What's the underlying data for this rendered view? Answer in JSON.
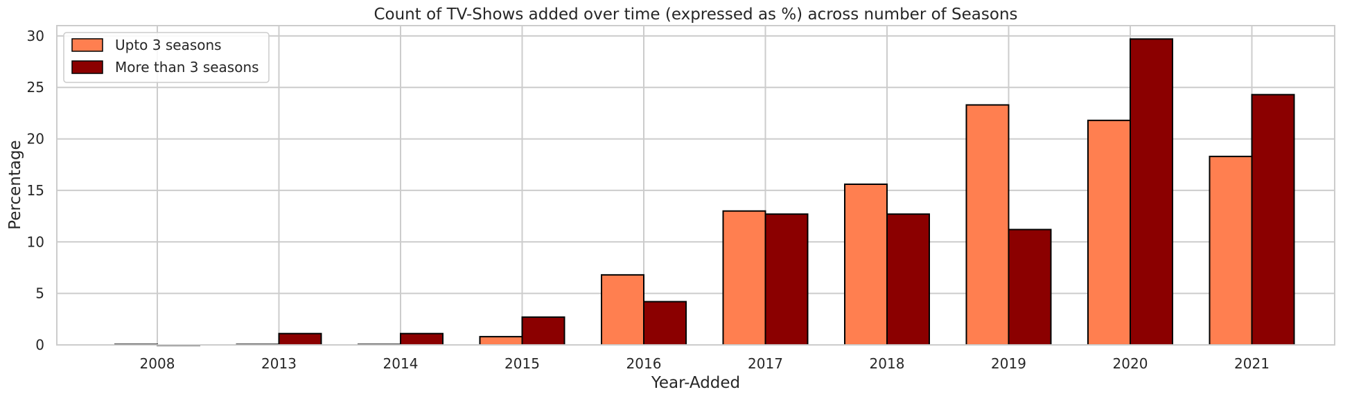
{
  "chart_data": {
    "type": "bar",
    "title": "Count of TV-Shows added over time (expressed as %) across number of Seasons",
    "xlabel": "Year-Added",
    "ylabel": "Percentage",
    "categories": [
      "2008",
      "2013",
      "2014",
      "2015",
      "2016",
      "2017",
      "2018",
      "2019",
      "2020",
      "2021"
    ],
    "series": [
      {
        "name": "Upto 3 seasons",
        "color": "#FF7F50",
        "values": [
          0.05,
          0.05,
          0.05,
          0.8,
          6.8,
          13.0,
          15.6,
          23.3,
          21.8,
          18.3
        ]
      },
      {
        "name": "More than 3 seasons",
        "color": "#8B0000",
        "values": [
          0.0,
          1.1,
          1.1,
          2.7,
          4.2,
          12.7,
          12.7,
          11.2,
          29.7,
          24.3
        ]
      }
    ],
    "ylim": [
      0,
      31
    ],
    "yticks": [
      "0",
      "5",
      "10",
      "15",
      "20",
      "25",
      "30"
    ],
    "grid": true,
    "legend_position": "top-left"
  }
}
